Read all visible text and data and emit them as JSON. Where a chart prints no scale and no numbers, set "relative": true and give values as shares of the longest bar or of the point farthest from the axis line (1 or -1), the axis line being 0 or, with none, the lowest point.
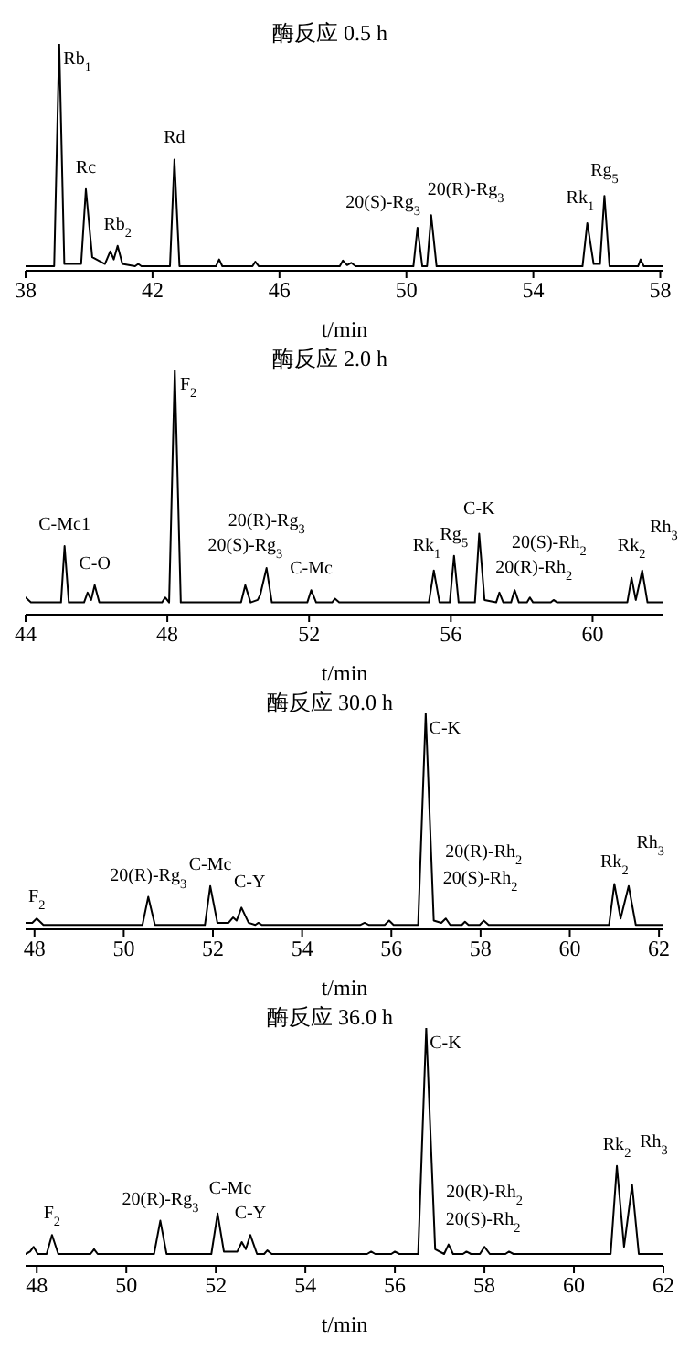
{
  "chart_data": [
    {
      "type": "line",
      "title": "酶反应 0.5 h",
      "xlabel": "t/min",
      "relative": true,
      "color": "#000000",
      "xlim": [
        38,
        58.1
      ],
      "xticks": [
        38,
        42,
        46,
        50,
        54,
        58
      ],
      "x": [
        38,
        38.9,
        39.06,
        39.22,
        39.75,
        39.9,
        40.1,
        40.5,
        40.67,
        40.78,
        40.9,
        41.05,
        41.45,
        41.55,
        41.65,
        42.55,
        42.69,
        42.85,
        44.0,
        44.1,
        44.2,
        45.15,
        45.24,
        45.35,
        47.9,
        48.0,
        48.13,
        48.26,
        48.4,
        50.22,
        50.35,
        50.5,
        50.65,
        50.78,
        50.95,
        55.55,
        55.7,
        55.9,
        56.1,
        56.24,
        56.4,
        57.3,
        57.38,
        57.48,
        58.1
      ],
      "values": [
        0.02,
        0.02,
        1.0,
        0.03,
        0.03,
        0.36,
        0.06,
        0.03,
        0.086,
        0.05,
        0.11,
        0.03,
        0.02,
        0.03,
        0.02,
        0.02,
        0.49,
        0.02,
        0.02,
        0.05,
        0.02,
        0.02,
        0.04,
        0.02,
        0.02,
        0.045,
        0.025,
        0.035,
        0.02,
        0.02,
        0.19,
        0.02,
        0.02,
        0.245,
        0.02,
        0.02,
        0.21,
        0.03,
        0.03,
        0.33,
        0.02,
        0.02,
        0.05,
        0.02,
        0.02
      ],
      "annotations": [
        {
          "text": "Rb$_{1}$",
          "x": 39.06,
          "y": 1.0
        },
        {
          "text": "Rc",
          "x": 39.9,
          "y": 0.36
        },
        {
          "text": "Rb$_{2}$",
          "x": 40.9,
          "y": 0.11
        },
        {
          "text": "Rd",
          "x": 42.69,
          "y": 0.49
        },
        {
          "text": "20(S)-Rg$_{3}$",
          "x": 50.35,
          "y": 0.19
        },
        {
          "text": "20(R)-Rg$_{3}$",
          "x": 50.78,
          "y": 0.245
        },
        {
          "text": "Rk$_{1}$",
          "x": 55.7,
          "y": 0.21
        },
        {
          "text": "Rg$_{5}$",
          "x": 56.24,
          "y": 0.33
        }
      ]
    },
    {
      "type": "line",
      "title": "酶反应 2.0 h",
      "xlabel": "t/min",
      "relative": true,
      "color": "#000000",
      "xlim": [
        44,
        62
      ],
      "xticks": [
        44,
        48,
        52,
        56,
        60
      ],
      "x": [
        44,
        44.15,
        45.0,
        45.1,
        45.22,
        45.65,
        45.75,
        45.85,
        45.95,
        46.08,
        47.85,
        47.94,
        48.05,
        48.21,
        48.38,
        50.08,
        50.2,
        50.35,
        50.55,
        50.62,
        50.8,
        50.95,
        51.95,
        52.06,
        52.2,
        52.65,
        52.73,
        52.85,
        55.38,
        55.52,
        55.68,
        55.97,
        56.09,
        56.22,
        56.68,
        56.8,
        56.95,
        57.28,
        57.37,
        57.48,
        57.7,
        57.8,
        57.92,
        58.15,
        58.23,
        58.32,
        58.82,
        58.9,
        59.0,
        60.98,
        61.1,
        61.22,
        61.4,
        61.55,
        62
      ],
      "values": [
        0.07,
        0.05,
        0.05,
        0.28,
        0.05,
        0.05,
        0.09,
        0.06,
        0.12,
        0.05,
        0.05,
        0.07,
        0.05,
        1.0,
        0.05,
        0.05,
        0.12,
        0.05,
        0.06,
        0.08,
        0.19,
        0.05,
        0.05,
        0.1,
        0.05,
        0.05,
        0.065,
        0.05,
        0.05,
        0.18,
        0.05,
        0.05,
        0.24,
        0.05,
        0.05,
        0.33,
        0.06,
        0.05,
        0.09,
        0.05,
        0.05,
        0.1,
        0.05,
        0.05,
        0.07,
        0.05,
        0.05,
        0.06,
        0.05,
        0.05,
        0.15,
        0.06,
        0.18,
        0.05,
        0.05
      ],
      "annotations": [
        {
          "text": "C-Mc1",
          "x": 45.1,
          "y": 0.28
        },
        {
          "text": "C-O",
          "x": 45.95,
          "y": 0.12
        },
        {
          "text": "F$_{2}$",
          "x": 48.21,
          "y": 1.0
        },
        {
          "text": "20(S)-Rg$_{3}$",
          "x": 50.2,
          "y": 0.12
        },
        {
          "text": "20(R)-Rg$_{3}$",
          "x": 50.8,
          "y": 0.19
        },
        {
          "text": "C-Mc",
          "x": 52.06,
          "y": 0.1
        },
        {
          "text": "Rk$_{1}$",
          "x": 55.52,
          "y": 0.18
        },
        {
          "text": "Rg$_{5}$",
          "x": 56.09,
          "y": 0.24
        },
        {
          "text": "C-K",
          "x": 56.8,
          "y": 0.33
        },
        {
          "text": "20(R)-Rh$_{2}$",
          "x": 57.37,
          "y": 0.09
        },
        {
          "text": "20(S)-Rh$_{2}$",
          "x": 57.8,
          "y": 0.1
        },
        {
          "text": "Rk$_{2}$",
          "x": 61.1,
          "y": 0.15
        },
        {
          "text": "Rh$_{3}$",
          "x": 61.4,
          "y": 0.18
        }
      ]
    },
    {
      "type": "line",
      "title": "酶反应 30.0 h",
      "xlabel": "t/min",
      "relative": true,
      "color": "#000000",
      "xlim": [
        47.8,
        62.1
      ],
      "xticks": [
        48,
        50,
        52,
        54,
        56,
        58,
        60,
        62
      ],
      "x": [
        47.8,
        47.95,
        48.05,
        48.2,
        50.42,
        50.55,
        50.7,
        51.82,
        51.94,
        52.1,
        52.35,
        52.45,
        52.53,
        52.64,
        52.8,
        52.95,
        53.02,
        53.1,
        55.3,
        55.4,
        55.5,
        55.85,
        55.95,
        56.05,
        56.6,
        56.77,
        56.95,
        57.12,
        57.22,
        57.32,
        57.58,
        57.65,
        57.73,
        57.98,
        58.07,
        58.18,
        60.88,
        61.0,
        61.14,
        61.32,
        61.48,
        62.1
      ],
      "values": [
        0.03,
        0.03,
        0.05,
        0.02,
        0.02,
        0.15,
        0.02,
        0.02,
        0.2,
        0.03,
        0.03,
        0.055,
        0.04,
        0.1,
        0.03,
        0.02,
        0.03,
        0.02,
        0.02,
        0.03,
        0.02,
        0.02,
        0.04,
        0.02,
        0.02,
        1.0,
        0.04,
        0.03,
        0.05,
        0.02,
        0.02,
        0.035,
        0.02,
        0.02,
        0.04,
        0.02,
        0.02,
        0.21,
        0.05,
        0.2,
        0.02,
        0.02
      ],
      "annotations": [
        {
          "text": "F$_{2}$",
          "x": 48.05,
          "y": 0.05
        },
        {
          "text": "20(R)-Rg$_{3}$",
          "x": 50.55,
          "y": 0.15
        },
        {
          "text": "C-Mc",
          "x": 51.94,
          "y": 0.2
        },
        {
          "text": "C-Y",
          "x": 52.64,
          "y": 0.1
        },
        {
          "text": "C-K",
          "x": 56.77,
          "y": 1.0
        },
        {
          "text": "20(S)-Rh$_{2}$",
          "x": 57.22,
          "y": 0.05
        },
        {
          "text": "20(R)-Rh$_{2}$",
          "x": 58.07,
          "y": 0.04
        },
        {
          "text": "Rk$_{2}$",
          "x": 61.0,
          "y": 0.21
        },
        {
          "text": "Rh$_{3}$",
          "x": 61.32,
          "y": 0.2
        }
      ]
    },
    {
      "type": "line",
      "title": "酶反应 36.0 h",
      "xlabel": "t/min",
      "relative": true,
      "color": "#000000",
      "xlim": [
        47.75,
        62
      ],
      "xticks": [
        48,
        50,
        52,
        54,
        56,
        58,
        60,
        62
      ],
      "x": [
        47.75,
        47.85,
        47.93,
        48.02,
        48.22,
        48.34,
        48.48,
        49.2,
        49.28,
        49.36,
        50.62,
        50.76,
        50.9,
        51.9,
        52.04,
        52.18,
        52.48,
        52.58,
        52.67,
        52.77,
        52.92,
        53.08,
        53.15,
        53.25,
        55.38,
        55.47,
        55.56,
        55.92,
        56.0,
        56.1,
        56.52,
        56.7,
        56.9,
        57.1,
        57.2,
        57.3,
        57.52,
        57.6,
        57.7,
        57.9,
        58.0,
        58.12,
        58.47,
        58.55,
        58.65,
        60.82,
        60.96,
        61.12,
        61.3,
        61.45,
        62
      ],
      "values": [
        0.05,
        0.06,
        0.08,
        0.05,
        0.05,
        0.13,
        0.05,
        0.05,
        0.07,
        0.05,
        0.05,
        0.19,
        0.05,
        0.05,
        0.22,
        0.06,
        0.06,
        0.1,
        0.07,
        0.13,
        0.05,
        0.05,
        0.065,
        0.05,
        0.05,
        0.06,
        0.05,
        0.05,
        0.06,
        0.05,
        0.05,
        1.0,
        0.07,
        0.05,
        0.09,
        0.05,
        0.05,
        0.06,
        0.05,
        0.05,
        0.08,
        0.05,
        0.05,
        0.06,
        0.05,
        0.05,
        0.42,
        0.08,
        0.34,
        0.05,
        0.05
      ],
      "annotations": [
        {
          "text": "F$_{2}$",
          "x": 48.34,
          "y": 0.13
        },
        {
          "text": "20(R)-Rg$_{3}$",
          "x": 50.76,
          "y": 0.19
        },
        {
          "text": "C-Mc",
          "x": 52.04,
          "y": 0.22
        },
        {
          "text": "C-Y",
          "x": 52.77,
          "y": 0.13
        },
        {
          "text": "C-K",
          "x": 56.7,
          "y": 1.0
        },
        {
          "text": "20(S)-Rh$_{2}$",
          "x": 57.2,
          "y": 0.09
        },
        {
          "text": "20(R)-Rh$_{2}$",
          "x": 58.0,
          "y": 0.08
        },
        {
          "text": "Rk$_{2}$",
          "x": 60.96,
          "y": 0.42
        },
        {
          "text": "Rh$_{3}$",
          "x": 61.3,
          "y": 0.34
        }
      ]
    }
  ]
}
